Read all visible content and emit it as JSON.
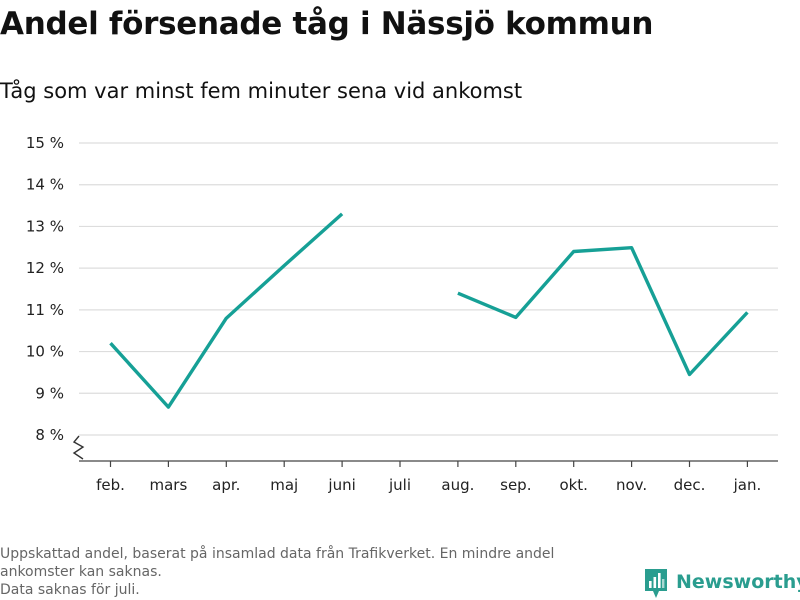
{
  "title": "Andel försenade tåg i Nässjö kommun",
  "subtitle": "Tåg som var minst fem minuter sena vid ankomst",
  "footnote": {
    "line1": "Uppskattad andel, baserat på insamlad data från Trafikverket. En mindre andel ankomster kan saknas.",
    "line2": "Data saknas för juli."
  },
  "brand": {
    "name": "Newsworthy",
    "icon": "newsworthy-logo-icon",
    "color": "#2a9d8f"
  },
  "chart_data": {
    "type": "line",
    "categories": [
      "feb.",
      "mars",
      "apr.",
      "maj",
      "juni",
      "juli",
      "aug.",
      "sep.",
      "okt.",
      "nov.",
      "dec.",
      "jan."
    ],
    "series": [
      {
        "values": [
          10.2,
          8.67,
          10.8,
          12.06,
          13.3,
          null,
          11.4,
          10.82,
          12.4,
          12.49,
          9.45,
          10.94
        ]
      }
    ],
    "y_ticks": [
      8,
      9,
      10,
      11,
      12,
      13,
      14,
      15
    ],
    "y_tick_labels": [
      "8 %",
      "9 %",
      "10 %",
      "11 %",
      "12 %",
      "13 %",
      "14 %",
      "15 %"
    ],
    "ylim": [
      8,
      15
    ],
    "y_axis_break": true,
    "grid": true,
    "line_color": "#16a096",
    "grid_color": "#dddddd"
  }
}
